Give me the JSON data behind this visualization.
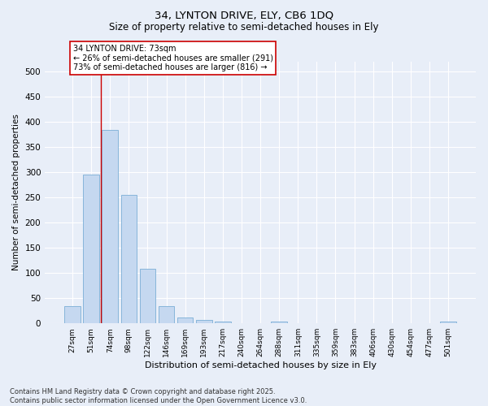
{
  "title1": "34, LYNTON DRIVE, ELY, CB6 1DQ",
  "title2": "Size of property relative to semi-detached houses in Ely",
  "xlabel": "Distribution of semi-detached houses by size in Ely",
  "ylabel": "Number of semi-detached properties",
  "bar_labels": [
    "27sqm",
    "51sqm",
    "74sqm",
    "98sqm",
    "122sqm",
    "146sqm",
    "169sqm",
    "193sqm",
    "217sqm",
    "240sqm",
    "264sqm",
    "288sqm",
    "311sqm",
    "335sqm",
    "359sqm",
    "383sqm",
    "406sqm",
    "430sqm",
    "454sqm",
    "477sqm",
    "501sqm"
  ],
  "bar_values": [
    35,
    295,
    385,
    255,
    108,
    35,
    11,
    6,
    4,
    0,
    0,
    4,
    0,
    0,
    0,
    0,
    0,
    0,
    0,
    0,
    4
  ],
  "bar_color": "#c5d8f0",
  "bar_edge_color": "#7aaed6",
  "vline_x": 1.5,
  "vline_color": "#cc0000",
  "annotation_text": "34 LYNTON DRIVE: 73sqm\n← 26% of semi-detached houses are smaller (291)\n73% of semi-detached houses are larger (816) →",
  "annotation_box_color": "white",
  "annotation_box_edge": "#cc0000",
  "ylim": [
    0,
    520
  ],
  "yticks": [
    0,
    50,
    100,
    150,
    200,
    250,
    300,
    350,
    400,
    450,
    500
  ],
  "footnote": "Contains HM Land Registry data © Crown copyright and database right 2025.\nContains public sector information licensed under the Open Government Licence v3.0.",
  "bg_color": "#e8eef8",
  "grid_color": "#ffffff"
}
